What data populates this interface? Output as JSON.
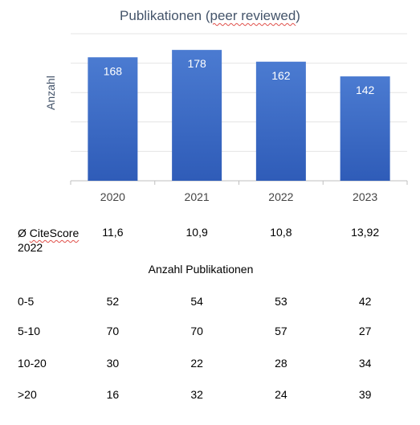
{
  "chart_data": {
    "type": "bar",
    "title_prefix": "Publikationen (",
    "title_squiggle": "peer reviewed",
    "title_suffix": ")",
    "ylabel": "Anzahl",
    "xlabel": "",
    "categories": [
      "2020",
      "2021",
      "2022",
      "2023"
    ],
    "values": [
      168,
      178,
      162,
      142
    ],
    "ylim": [
      0,
      200
    ],
    "grid": true,
    "legend": "none",
    "bar_color_top": "#4B7BD1",
    "bar_color_bottom": "#2F5CB8"
  },
  "citescore": {
    "label_line1_symbol": "Ø ",
    "label_line1_word": "CiteScore",
    "label_line2": "2022",
    "values": [
      "11,6",
      "10,9",
      "10,8",
      "13,92"
    ]
  },
  "table": {
    "heading": "Anzahl Publikationen",
    "rows": [
      {
        "label": "0-5",
        "values": [
          "52",
          "54",
          "53",
          "42"
        ]
      },
      {
        "label": "5-10",
        "values": [
          "70",
          "70",
          "57",
          "27"
        ]
      },
      {
        "label": "10-20",
        "values": [
          "30",
          "22",
          "28",
          "34"
        ]
      },
      {
        "label": ">20",
        "values": [
          "16",
          "32",
          "24",
          "39"
        ]
      }
    ]
  }
}
